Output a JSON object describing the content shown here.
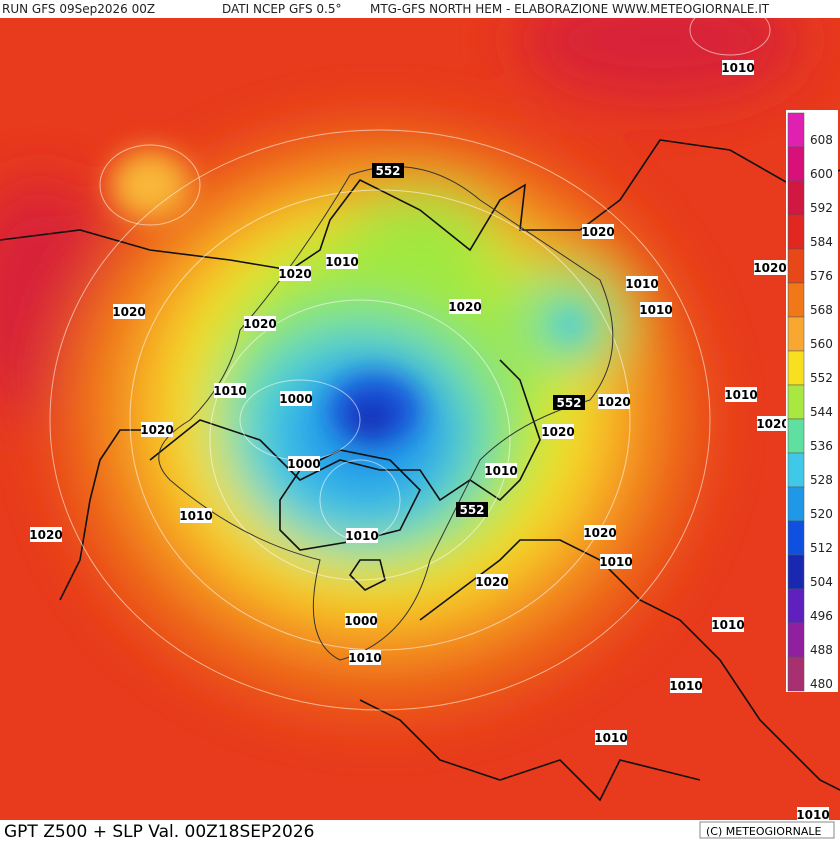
{
  "header": {
    "run": "RUN GFS 09Sep2026 00Z",
    "source": "DATI NCEP GFS 0.5°",
    "product": "MTG-GFS NORTH HEM - ELABORAZIONE WWW.METEOGIORNALE.IT"
  },
  "footer": {
    "title": "GPT Z500 + SLP Val. 00Z18SEP2026",
    "copyright": "(C) METEOGIORNALE"
  },
  "colorbar": {
    "levels": [
      608,
      600,
      592,
      584,
      576,
      568,
      560,
      552,
      544,
      536,
      528,
      520,
      512,
      504,
      496,
      488,
      480
    ],
    "colors": [
      "#e020b0",
      "#d8107a",
      "#d01840",
      "#e02820",
      "#e84818",
      "#f07818",
      "#f8a830",
      "#f8e020",
      "#a8e840",
      "#60e0a0",
      "#40c8e8",
      "#2098e8",
      "#1050e0",
      "#1828b0",
      "#6020c0",
      "#9020a0",
      "#a83070"
    ]
  },
  "contours": {
    "labels": [
      "1010",
      "552",
      "1020",
      "1010",
      "1020",
      "1020",
      "1020",
      "1010",
      "1010",
      "1020",
      "1020",
      "1010",
      "1000",
      "552",
      "1020",
      "1010",
      "1020",
      "1020",
      "1020",
      "1000",
      "1010",
      "552",
      "1010",
      "1020",
      "1010",
      "1020",
      "1010",
      "1020",
      "1000",
      "1010",
      "1010",
      "1010",
      "1010",
      "1010"
    ]
  }
}
